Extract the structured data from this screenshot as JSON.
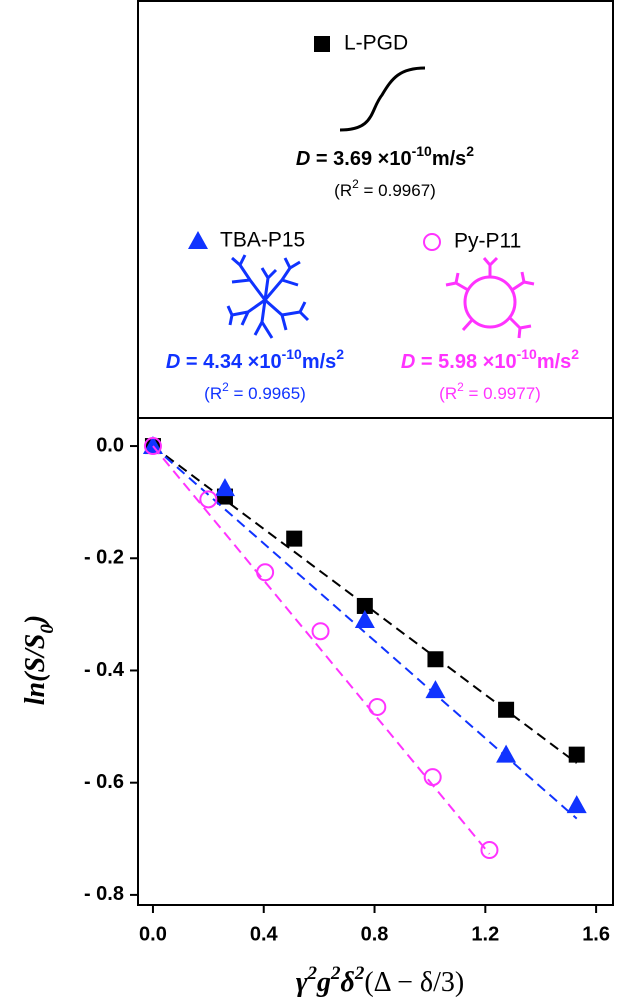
{
  "chart_data": {
    "type": "scatter",
    "xlabel_parts": [
      "γ",
      "2",
      "g",
      "2",
      "δ",
      "2",
      "(Δ − δ/3)"
    ],
    "ylabel_parts": [
      "ln(S/S",
      "0",
      ")"
    ],
    "xlim": [
      -0.054,
      1.661
    ],
    "ylim": [
      -0.818,
      0.05
    ],
    "xticks": [
      {
        "value": 0,
        "label": "0.0"
      },
      0.4,
      0.8,
      1.2,
      1.6
    ],
    "yticks": [
      {
        "value": 0,
        "label": "0.0"
      },
      {
        "value": -0.2,
        "label": "- 0.2"
      },
      {
        "value": -0.4,
        "label": "- 0.4"
      },
      {
        "value": -0.6,
        "label": "- 0.6"
      },
      {
        "value": -0.8,
        "label": "- 0.8"
      }
    ],
    "series": [
      {
        "name": "L-PGD",
        "color": "#000000",
        "marker": "square",
        "x": [
          0,
          0.26,
          0.51,
          0.765,
          1.02,
          1.275,
          1.53
        ],
        "values": [
          0,
          -0.09,
          -0.165,
          -0.285,
          -0.38,
          -0.47,
          -0.55
        ],
        "fit": {
          "x": [
            0,
            1.53
          ],
          "values": [
            0,
            -0.565
          ]
        },
        "d_text": [
          "D",
          " = 3.69 ×10",
          "-10",
          "m/s",
          "2"
        ],
        "r2_text": [
          "(R",
          "2",
          " = 0.9967)"
        ]
      },
      {
        "name": "TBA-P15",
        "color": "#1033ff",
        "marker": "triangle",
        "x": [
          0,
          0.26,
          0.765,
          1.02,
          1.275,
          1.53
        ],
        "values": [
          0,
          -0.075,
          -0.31,
          -0.435,
          -0.55,
          -0.64
        ],
        "fit": {
          "x": [
            0,
            1.53
          ],
          "values": [
            0,
            -0.664
          ]
        },
        "d_text": [
          "D",
          " = 4.34 ×10",
          "-10",
          "m/s",
          "2"
        ],
        "r2_text": [
          "(R",
          "2",
          " = 0.9965)"
        ]
      },
      {
        "name": "Py-P11",
        "color": "#ff33ff",
        "marker": "circle",
        "x": [
          0,
          0.2,
          0.405,
          0.605,
          0.81,
          1.01,
          1.215
        ],
        "values": [
          0,
          -0.095,
          -0.225,
          -0.33,
          -0.465,
          -0.59,
          -0.72
        ],
        "fit": {
          "x": [
            0,
            1.215
          ],
          "values": [
            0,
            -0.727
          ]
        },
        "d_text": [
          "D",
          " = 5.98 ×10",
          "-10",
          "m/s",
          "2"
        ],
        "r2_text": [
          "(R",
          "2",
          " = 0.9977)"
        ]
      }
    ]
  }
}
